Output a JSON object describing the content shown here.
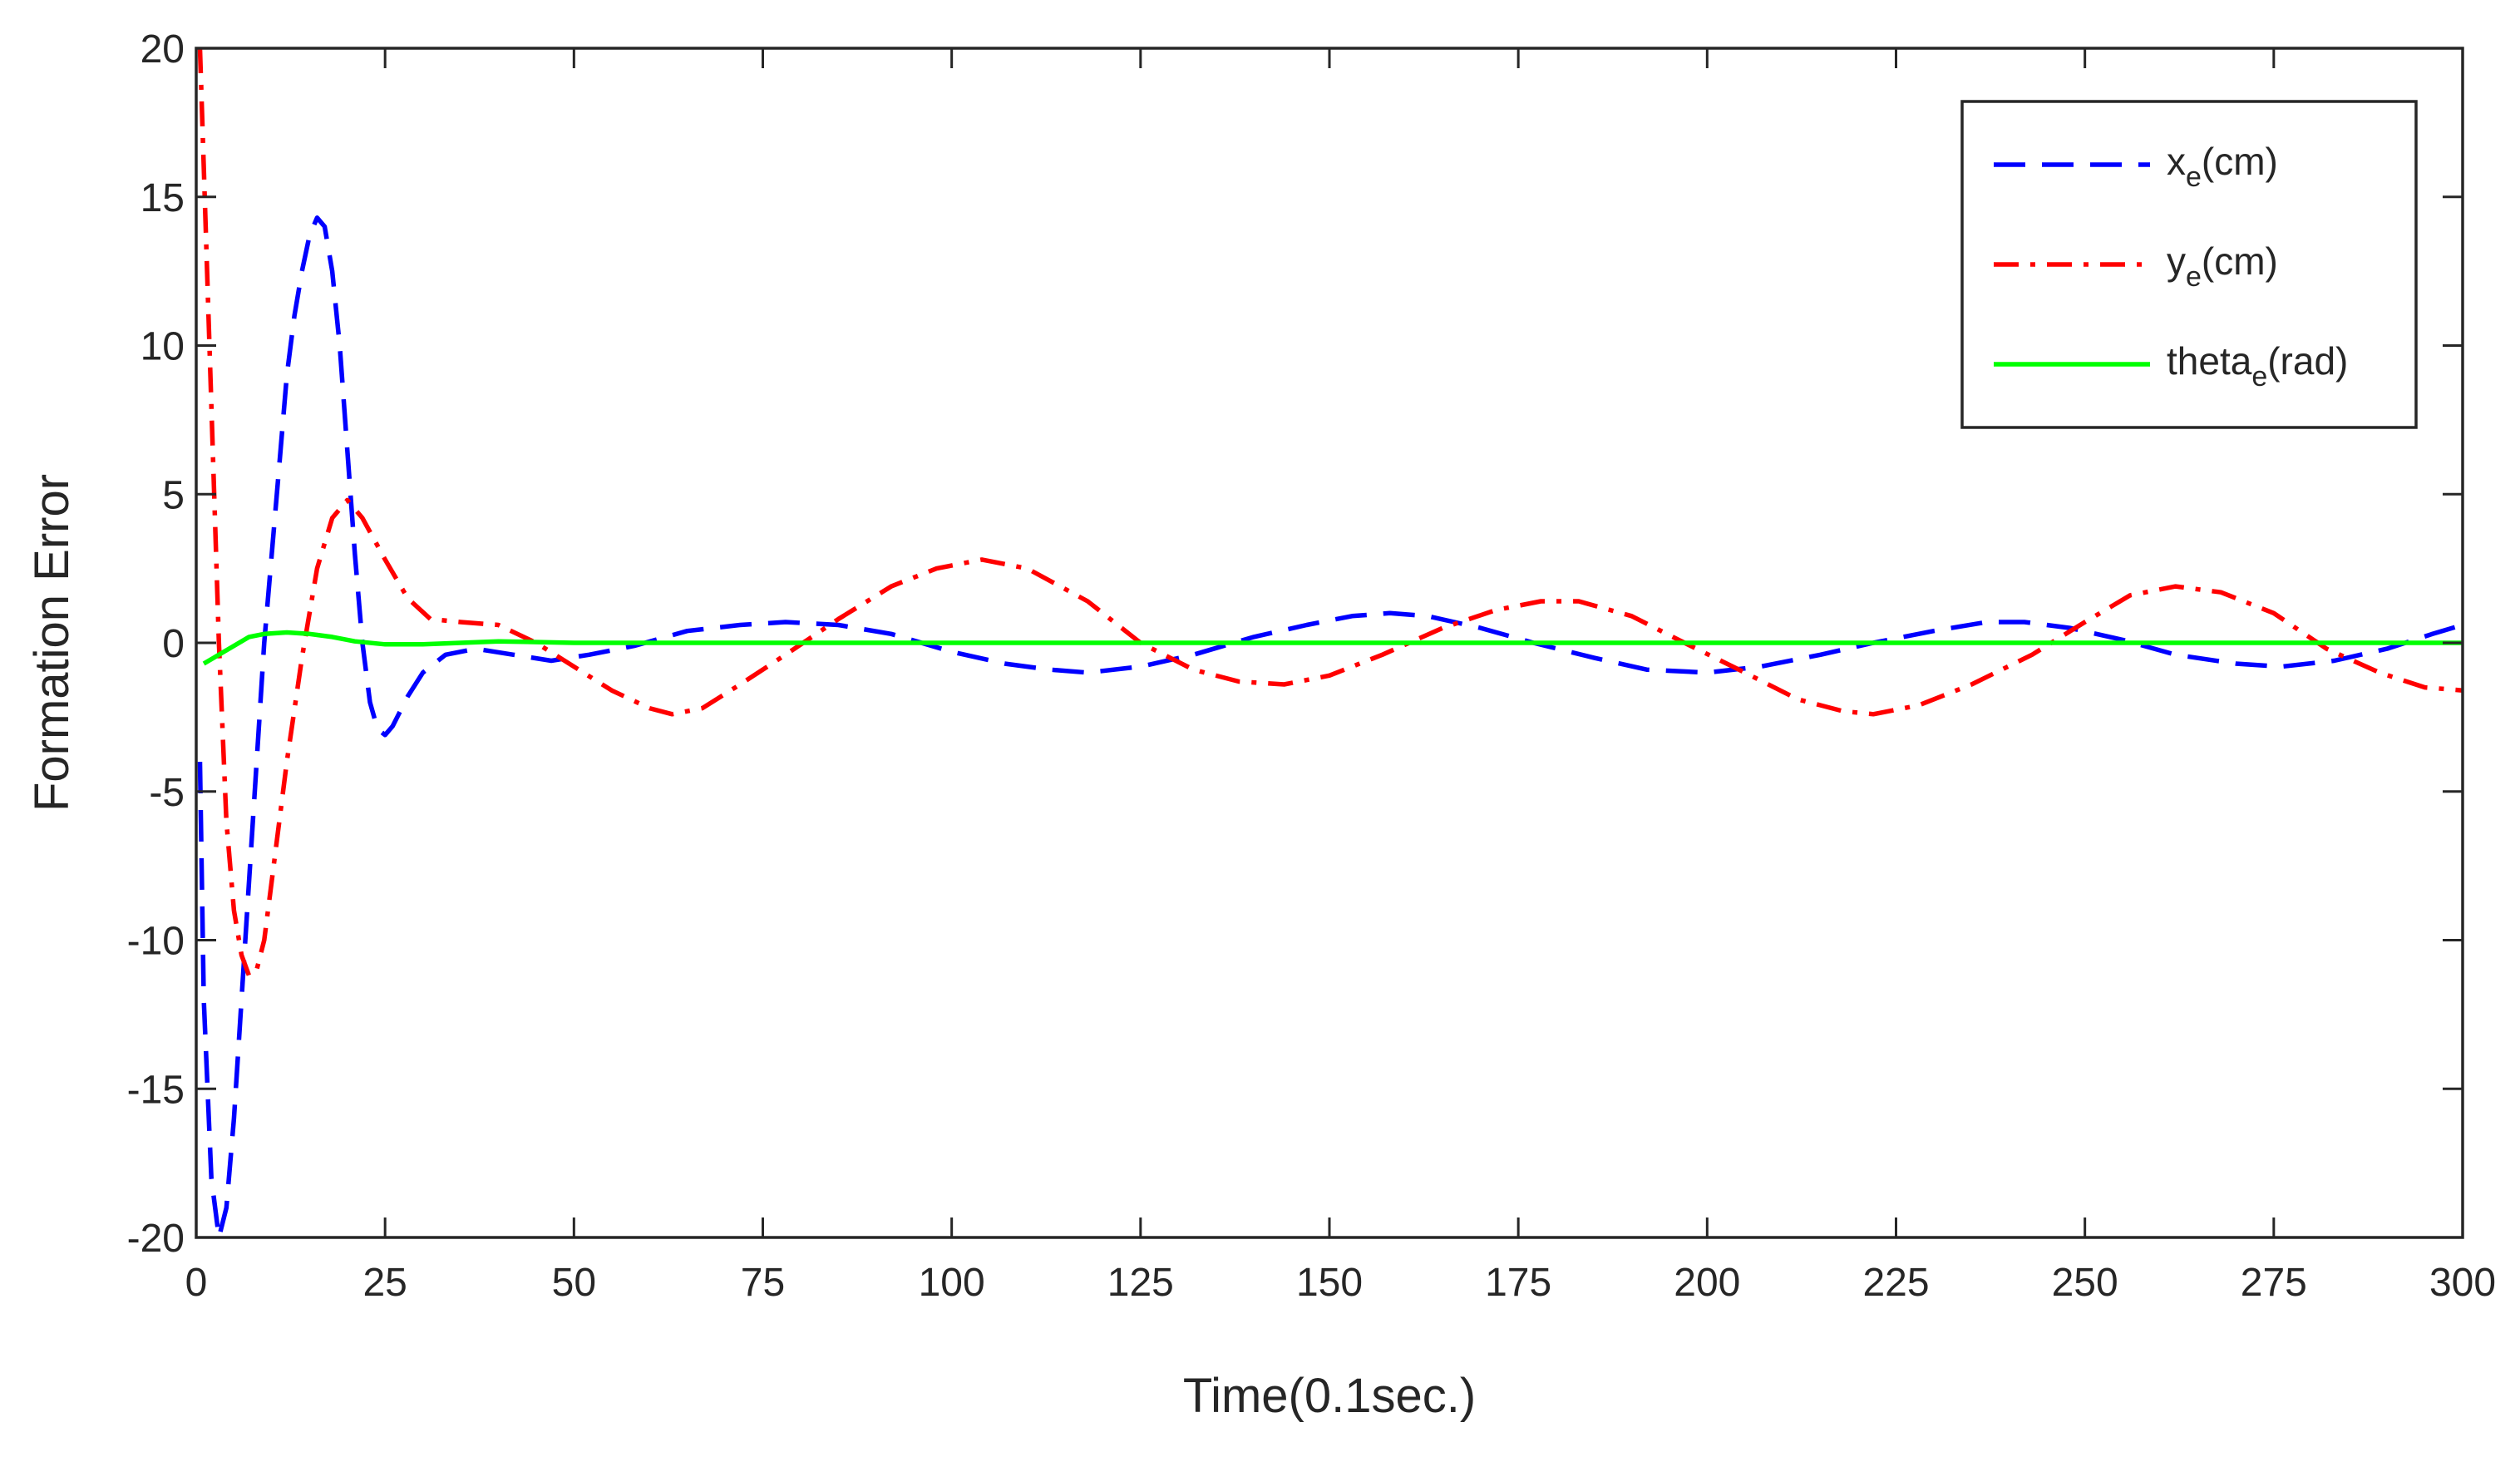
{
  "chart_data": {
    "type": "line",
    "title": "",
    "xlabel": "Time(0.1sec.)",
    "ylabel": "Formation Error",
    "xlim": [
      0,
      300
    ],
    "ylim": [
      -20,
      20
    ],
    "xticks": [
      0,
      25,
      50,
      75,
      100,
      125,
      150,
      175,
      200,
      225,
      250,
      275,
      300
    ],
    "yticks": [
      -20,
      -15,
      -10,
      -5,
      0,
      5,
      10,
      15,
      20
    ],
    "legend_position": "top-right",
    "series": [
      {
        "name": "x_e(cm)",
        "label_main": "x",
        "label_sub": "e",
        "label_rest": "(cm)",
        "color": "#0000ff",
        "style": "dashed",
        "points": [
          [
            0.5,
            -4
          ],
          [
            1,
            -12
          ],
          [
            2,
            -18
          ],
          [
            3,
            -20
          ],
          [
            4,
            -19
          ],
          [
            5,
            -16
          ],
          [
            7,
            -8
          ],
          [
            9,
            0
          ],
          [
            10,
            3
          ],
          [
            11,
            6
          ],
          [
            12,
            9
          ],
          [
            13,
            11
          ],
          [
            14,
            12.5
          ],
          [
            15,
            13.7
          ],
          [
            16,
            14.3
          ],
          [
            17,
            14
          ],
          [
            18,
            12.5
          ],
          [
            19,
            10
          ],
          [
            20,
            6.5
          ],
          [
            21,
            3
          ],
          [
            22,
            0
          ],
          [
            23,
            -2
          ],
          [
            24,
            -2.9
          ],
          [
            25,
            -3.1
          ],
          [
            26,
            -2.8
          ],
          [
            28,
            -1.8
          ],
          [
            30,
            -1
          ],
          [
            33,
            -0.4
          ],
          [
            37,
            -0.2
          ],
          [
            42,
            -0.4
          ],
          [
            47,
            -0.6
          ],
          [
            52,
            -0.4
          ],
          [
            58,
            -0.1
          ],
          [
            65,
            0.4
          ],
          [
            72,
            0.6
          ],
          [
            78,
            0.7
          ],
          [
            85,
            0.6
          ],
          [
            92,
            0.3
          ],
          [
            100,
            -0.3
          ],
          [
            107,
            -0.7
          ],
          [
            113,
            -0.9
          ],
          [
            118,
            -1
          ],
          [
            125,
            -0.8
          ],
          [
            132,
            -0.4
          ],
          [
            140,
            0.2
          ],
          [
            147,
            0.6
          ],
          [
            153,
            0.9
          ],
          [
            158,
            1
          ],
          [
            163,
            0.9
          ],
          [
            170,
            0.5
          ],
          [
            177,
            0
          ],
          [
            185,
            -0.5
          ],
          [
            192,
            -0.9
          ],
          [
            200,
            -1
          ],
          [
            207,
            -0.8
          ],
          [
            215,
            -0.4
          ],
          [
            222,
            0
          ],
          [
            230,
            0.4
          ],
          [
            237,
            0.7
          ],
          [
            242,
            0.7
          ],
          [
            248,
            0.5
          ],
          [
            255,
            0.1
          ],
          [
            262,
            -0.4
          ],
          [
            270,
            -0.7
          ],
          [
            276,
            -0.8
          ],
          [
            283,
            -0.6
          ],
          [
            290,
            -0.2
          ],
          [
            296,
            0.3
          ],
          [
            300,
            0.6
          ]
        ]
      },
      {
        "name": "y_e(cm)",
        "label_main": "y",
        "label_sub": "e",
        "label_rest": "(cm)",
        "color": "#ff0000",
        "style": "dashdot",
        "points": [
          [
            0.5,
            20
          ],
          [
            1,
            16
          ],
          [
            2,
            8
          ],
          [
            3,
            0
          ],
          [
            4,
            -6
          ],
          [
            5,
            -9
          ],
          [
            6,
            -10.5
          ],
          [
            7,
            -11.2
          ],
          [
            8,
            -11
          ],
          [
            9,
            -10
          ],
          [
            10,
            -8
          ],
          [
            12,
            -4
          ],
          [
            14,
            -0.5
          ],
          [
            16,
            2.5
          ],
          [
            18,
            4.2
          ],
          [
            20,
            4.8
          ],
          [
            22,
            4.2
          ],
          [
            25,
            2.8
          ],
          [
            28,
            1.5
          ],
          [
            31,
            0.8
          ],
          [
            35,
            0.7
          ],
          [
            40,
            0.6
          ],
          [
            45,
            0
          ],
          [
            50,
            -0.8
          ],
          [
            55,
            -1.6
          ],
          [
            60,
            -2.2
          ],
          [
            63,
            -2.4
          ],
          [
            67,
            -2.2
          ],
          [
            72,
            -1.4
          ],
          [
            78,
            -0.4
          ],
          [
            85,
            0.8
          ],
          [
            92,
            1.9
          ],
          [
            98,
            2.5
          ],
          [
            104,
            2.8
          ],
          [
            110,
            2.5
          ],
          [
            118,
            1.4
          ],
          [
            125,
            0
          ],
          [
            132,
            -0.9
          ],
          [
            138,
            -1.3
          ],
          [
            144,
            -1.4
          ],
          [
            150,
            -1.1
          ],
          [
            157,
            -0.4
          ],
          [
            165,
            0.5
          ],
          [
            172,
            1.1
          ],
          [
            178,
            1.4
          ],
          [
            183,
            1.4
          ],
          [
            190,
            0.9
          ],
          [
            197,
            0
          ],
          [
            205,
            -1
          ],
          [
            212,
            -1.9
          ],
          [
            218,
            -2.3
          ],
          [
            222,
            -2.4
          ],
          [
            228,
            -2.1
          ],
          [
            235,
            -1.4
          ],
          [
            243,
            -0.4
          ],
          [
            250,
            0.7
          ],
          [
            256,
            1.6
          ],
          [
            262,
            1.9
          ],
          [
            268,
            1.7
          ],
          [
            275,
            1
          ],
          [
            282,
            -0.2
          ],
          [
            289,
            -1
          ],
          [
            295,
            -1.5
          ],
          [
            300,
            -1.6
          ]
        ]
      },
      {
        "name": "theta_e(rad)",
        "label_main": "theta",
        "label_sub": "e",
        "label_rest": "(rad)",
        "color": "#00ff00",
        "style": "solid",
        "points": [
          [
            1,
            -0.7
          ],
          [
            3,
            -0.4
          ],
          [
            5,
            -0.1
          ],
          [
            7,
            0.2
          ],
          [
            9,
            0.3
          ],
          [
            12,
            0.35
          ],
          [
            15,
            0.3
          ],
          [
            18,
            0.2
          ],
          [
            21,
            0.05
          ],
          [
            25,
            -0.05
          ],
          [
            30,
            -0.05
          ],
          [
            35,
            0
          ],
          [
            40,
            0.05
          ],
          [
            50,
            0
          ],
          [
            100,
            0
          ],
          [
            150,
            0
          ],
          [
            200,
            0
          ],
          [
            250,
            0
          ],
          [
            300,
            0
          ]
        ]
      }
    ]
  }
}
